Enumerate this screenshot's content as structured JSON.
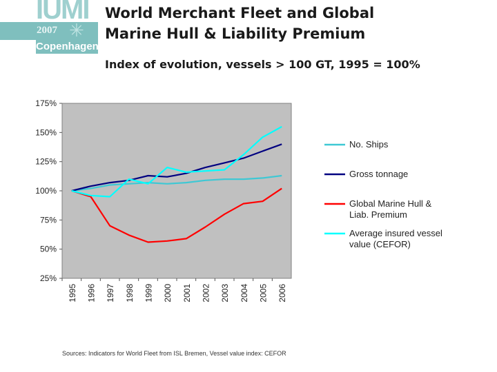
{
  "header": {
    "title_line1": "World Merchant Fleet and Global",
    "title_line2": "Marine Hull & Liability Premium",
    "subtitle": "Index of evolution, vessels > 100 GT, 1995 = 100%"
  },
  "logo": {
    "big_text": "IUMI",
    "year": "2007",
    "city": "Copenhagen",
    "colors": {
      "band": "#7fbfbe",
      "letters": "#9fd0cf"
    }
  },
  "source_note": "Sources: Indicators for World Fleet from ISL Bremen, Vessel value index: CEFOR",
  "chart_data": {
    "type": "line",
    "title": "",
    "xlabel": "",
    "ylabel": "",
    "x": [
      "1995",
      "1996",
      "1997",
      "1998",
      "1999",
      "2000",
      "2001",
      "2002",
      "2003",
      "2004",
      "2005",
      "2006"
    ],
    "ylim": [
      25,
      175
    ],
    "yticks": [
      25,
      50,
      75,
      100,
      125,
      150,
      175
    ],
    "ytick_labels": [
      "25%",
      "50%",
      "75%",
      "100%",
      "125%",
      "150%",
      "175%"
    ],
    "plot_background": "#c0c0c0",
    "grid": false,
    "legend_position": "right",
    "series": [
      {
        "name": "No. Ships",
        "color": "#3ec8d4",
        "values": [
          100,
          102,
          105,
          106,
          107,
          106,
          107,
          109,
          110,
          110,
          111,
          113
        ]
      },
      {
        "name": "Gross tonnage",
        "color": "#000080",
        "values": [
          100,
          104,
          107,
          109,
          113,
          112,
          115,
          120,
          124,
          128,
          134,
          140
        ]
      },
      {
        "name": "Global Marine Hull & Liab. Premium",
        "color": "#ff0000",
        "values": [
          100,
          95,
          70,
          62,
          56,
          57,
          59,
          69,
          80,
          89,
          91,
          102
        ]
      },
      {
        "name": "Average insured vessel value (CEFOR)",
        "color": "#00ffff",
        "values": [
          100,
          96,
          95,
          110,
          106,
          120,
          116,
          117,
          118,
          131,
          146,
          155
        ]
      }
    ]
  }
}
